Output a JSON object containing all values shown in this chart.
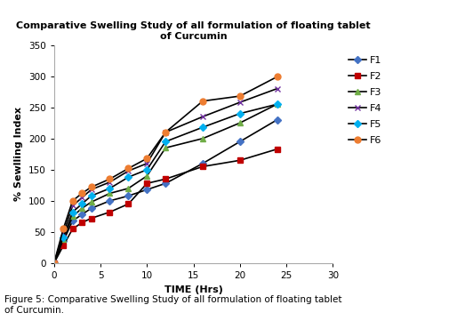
{
  "title": "Comparative Swelling Study of all formulation of floating tablet\nof Curcumin",
  "xlabel": "TIME (Hrs)",
  "ylabel": "% Sewlling Index",
  "xlim": [
    0,
    30
  ],
  "ylim": [
    0,
    350
  ],
  "yticks": [
    0,
    50,
    100,
    150,
    200,
    250,
    300,
    350
  ],
  "xticks": [
    0,
    5,
    10,
    15,
    20,
    25,
    30
  ],
  "series": {
    "F1": {
      "x": [
        0,
        1,
        2,
        3,
        4,
        6,
        8,
        10,
        12,
        16,
        20,
        24
      ],
      "y": [
        0,
        35,
        68,
        78,
        88,
        100,
        108,
        118,
        128,
        160,
        195,
        230
      ],
      "color": "#4472C4",
      "marker": "D",
      "markersize": 4
    },
    "F2": {
      "x": [
        0,
        1,
        2,
        3,
        4,
        6,
        8,
        10,
        12,
        16,
        20,
        24
      ],
      "y": [
        0,
        28,
        55,
        65,
        72,
        82,
        95,
        128,
        135,
        155,
        165,
        183
      ],
      "color": "#C00000",
      "marker": "s",
      "markersize": 4
    },
    "F3": {
      "x": [
        0,
        1,
        2,
        3,
        4,
        6,
        8,
        10,
        12,
        16,
        20,
        24
      ],
      "y": [
        0,
        38,
        75,
        88,
        98,
        112,
        120,
        140,
        185,
        200,
        225,
        255
      ],
      "color": "#70AD47",
      "marker": "^",
      "markersize": 4
    },
    "F4": {
      "x": [
        0,
        1,
        2,
        3,
        4,
        6,
        8,
        10,
        12,
        16,
        20,
        24
      ],
      "y": [
        0,
        48,
        92,
        105,
        118,
        130,
        148,
        160,
        210,
        235,
        258,
        280
      ],
      "color": "#7030A0",
      "marker": "x",
      "markersize": 5
    },
    "F5": {
      "x": [
        0,
        1,
        2,
        3,
        4,
        6,
        8,
        10,
        12,
        16,
        20,
        24
      ],
      "y": [
        0,
        42,
        82,
        95,
        108,
        120,
        138,
        150,
        195,
        218,
        240,
        255
      ],
      "color": "#00B0F0",
      "marker": "D",
      "markersize": 4
    },
    "F6": {
      "x": [
        0,
        1,
        2,
        3,
        4,
        6,
        8,
        10,
        12,
        16,
        20,
        24
      ],
      "y": [
        0,
        55,
        100,
        112,
        122,
        135,
        152,
        168,
        210,
        260,
        268,
        299
      ],
      "color": "#ED7D31",
      "marker": "o",
      "markersize": 5
    }
  },
  "figure_caption": "Figure 5: Comparative Swelling Study of all formulation of floating tablet\nof Curcumin.",
  "background_color": "#FFFFFF",
  "line_color": "#000000",
  "linewidth": 1.2
}
